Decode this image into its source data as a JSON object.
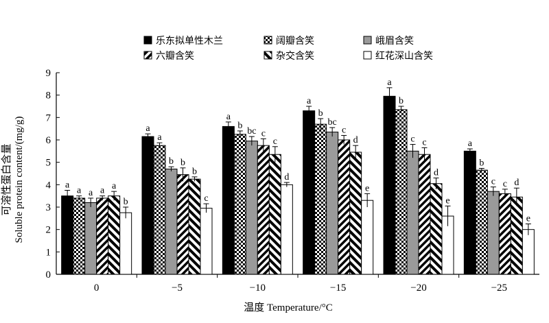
{
  "chart_data": {
    "type": "bar",
    "ylabel_cn": "可溶性蛋白含量",
    "ylabel_en": "Soluble protein content/(mg/g)",
    "xlabel": "温度 Temperature/°C",
    "ylim": [
      0,
      9
    ],
    "yticks": [
      "0",
      "1",
      "2",
      "3",
      "4",
      "5",
      "6",
      "7",
      "8",
      "9"
    ],
    "categories": [
      "0",
      "−5",
      "−10",
      "−15",
      "−20",
      "−25"
    ],
    "series": [
      {
        "name": "乐东拟单性木兰",
        "pattern": "black",
        "values": [
          3.5,
          6.15,
          6.6,
          7.3,
          7.95,
          5.5
        ],
        "errors": [
          0.25,
          0.12,
          0.2,
          0.2,
          0.38,
          0.1
        ],
        "labels": [
          "a",
          "a",
          "a",
          "a",
          "a",
          "a"
        ]
      },
      {
        "name": "阔瓣含笑",
        "pattern": "checker",
        "values": [
          3.4,
          5.75,
          6.25,
          6.7,
          7.35,
          4.65
        ],
        "errors": [
          0.1,
          0.12,
          0.15,
          0.25,
          0.15,
          0.08
        ],
        "labels": [
          "a",
          "a",
          "b",
          "b",
          "b",
          "b"
        ]
      },
      {
        "name": "峨眉含笑",
        "pattern": "gray",
        "values": [
          3.2,
          4.7,
          5.95,
          6.35,
          5.5,
          3.7
        ],
        "errors": [
          0.2,
          0.1,
          0.2,
          0.2,
          0.3,
          0.2
        ],
        "labels": [
          "a",
          "b",
          "bc",
          "bc",
          "c",
          "c"
        ]
      },
      {
        "name": "六瓣含笑",
        "pattern": "diag",
        "values": [
          3.4,
          4.45,
          5.75,
          6.0,
          5.35,
          3.6
        ],
        "errors": [
          0.1,
          0.3,
          0.3,
          0.2,
          0.3,
          0.2
        ],
        "labels": [
          "a",
          "b",
          "c",
          "c",
          "c",
          "c"
        ]
      },
      {
        "name": "杂交含笑",
        "pattern": "zigzag",
        "values": [
          3.5,
          4.25,
          5.35,
          5.45,
          4.05,
          3.45
        ],
        "errors": [
          0.2,
          0.1,
          0.35,
          0.3,
          0.25,
          0.4
        ],
        "labels": [
          "a",
          "b",
          "c",
          "d",
          "d",
          "d"
        ]
      },
      {
        "name": "红花深山含笑",
        "pattern": "white",
        "values": [
          2.75,
          2.95,
          4.0,
          3.3,
          2.6,
          2.0
        ],
        "errors": [
          0.25,
          0.2,
          0.1,
          0.3,
          0.45,
          0.25
        ],
        "labels": [
          "b",
          "c",
          "d",
          "e",
          "e",
          "e"
        ]
      }
    ],
    "legend_position": "top",
    "grid": false
  }
}
